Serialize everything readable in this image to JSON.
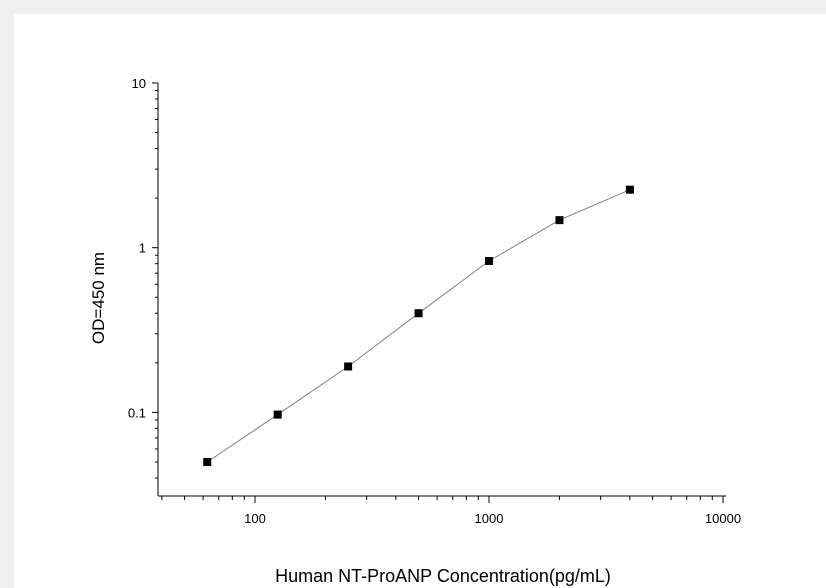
{
  "chart_data": {
    "type": "scatter",
    "title": "",
    "xlabel": "Human NT-ProANP Concentration(pg/mL)",
    "ylabel": "OD=450 nm",
    "xscale": "log",
    "yscale": "log",
    "xlim": [
      40,
      10000
    ],
    "ylim": [
      0.03,
      10
    ],
    "xticks": [
      100,
      1000,
      10000
    ],
    "xtick_labels": [
      "100",
      "1000",
      "10000"
    ],
    "yticks": [
      0.1,
      1,
      10
    ],
    "ytick_labels": [
      "0.1",
      "1",
      "10"
    ],
    "grid": false,
    "legend": "none",
    "marker": "square",
    "line_color": "#808080",
    "marker_color": "#000000",
    "connected": true,
    "series": [
      {
        "x": [
          62.5,
          125,
          250,
          500,
          1000,
          2000,
          4000
        ],
        "y": [
          0.05,
          0.097,
          0.19,
          0.4,
          0.83,
          1.47,
          2.25
        ]
      }
    ]
  }
}
